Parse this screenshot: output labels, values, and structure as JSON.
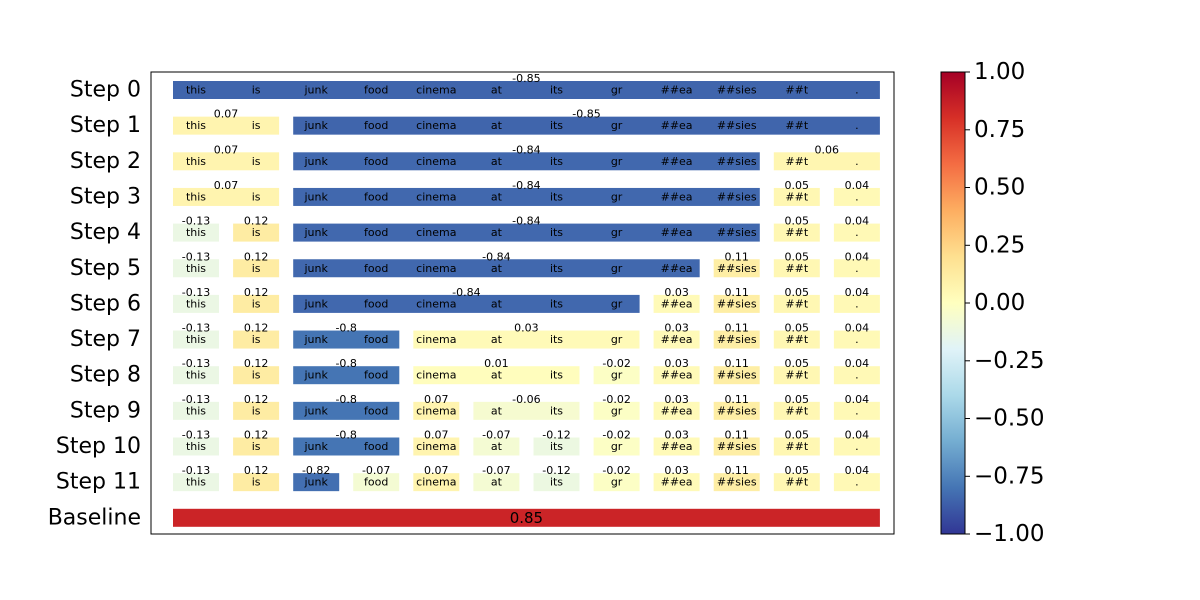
{
  "chart_data": {
    "type": "heatmap",
    "description_free": true,
    "tokens": [
      "this",
      "is",
      "junk",
      "food",
      "cinema",
      "at",
      "its",
      "gr",
      "##ea",
      "##sies",
      "##t",
      "."
    ],
    "rows": [
      {
        "label": "Step 0",
        "segments": [
          {
            "start": 0,
            "end": 11,
            "value": -0.85,
            "text": "-0.85"
          }
        ]
      },
      {
        "label": "Step 1",
        "segments": [
          {
            "start": 0,
            "end": 1,
            "value": 0.07,
            "text": "0.07"
          },
          {
            "start": 2,
            "end": 11,
            "value": -0.85,
            "text": "-0.85"
          }
        ]
      },
      {
        "label": "Step 2",
        "segments": [
          {
            "start": 0,
            "end": 1,
            "value": 0.07,
            "text": "0.07"
          },
          {
            "start": 2,
            "end": 9,
            "value": -0.84,
            "text": "-0.84"
          },
          {
            "start": 10,
            "end": 11,
            "value": 0.06,
            "text": "0.06"
          }
        ]
      },
      {
        "label": "Step 3",
        "segments": [
          {
            "start": 0,
            "end": 1,
            "value": 0.07,
            "text": "0.07"
          },
          {
            "start": 2,
            "end": 9,
            "value": -0.84,
            "text": "-0.84"
          },
          {
            "start": 10,
            "end": 10,
            "value": 0.05,
            "text": "0.05"
          },
          {
            "start": 11,
            "end": 11,
            "value": 0.04,
            "text": "0.04"
          }
        ]
      },
      {
        "label": "Step 4",
        "segments": [
          {
            "start": 0,
            "end": 0,
            "value": -0.13,
            "text": "-0.13"
          },
          {
            "start": 1,
            "end": 1,
            "value": 0.12,
            "text": "0.12"
          },
          {
            "start": 2,
            "end": 9,
            "value": -0.84,
            "text": "-0.84"
          },
          {
            "start": 10,
            "end": 10,
            "value": 0.05,
            "text": "0.05"
          },
          {
            "start": 11,
            "end": 11,
            "value": 0.04,
            "text": "0.04"
          }
        ]
      },
      {
        "label": "Step 5",
        "segments": [
          {
            "start": 0,
            "end": 0,
            "value": -0.13,
            "text": "-0.13"
          },
          {
            "start": 1,
            "end": 1,
            "value": 0.12,
            "text": "0.12"
          },
          {
            "start": 2,
            "end": 8,
            "value": -0.84,
            "text": "-0.84"
          },
          {
            "start": 9,
            "end": 9,
            "value": 0.11,
            "text": "0.11"
          },
          {
            "start": 10,
            "end": 10,
            "value": 0.05,
            "text": "0.05"
          },
          {
            "start": 11,
            "end": 11,
            "value": 0.04,
            "text": "0.04"
          }
        ]
      },
      {
        "label": "Step 6",
        "segments": [
          {
            "start": 0,
            "end": 0,
            "value": -0.13,
            "text": "-0.13"
          },
          {
            "start": 1,
            "end": 1,
            "value": 0.12,
            "text": "0.12"
          },
          {
            "start": 2,
            "end": 7,
            "value": -0.84,
            "text": "-0.84"
          },
          {
            "start": 8,
            "end": 8,
            "value": 0.03,
            "text": "0.03"
          },
          {
            "start": 9,
            "end": 9,
            "value": 0.11,
            "text": "0.11"
          },
          {
            "start": 10,
            "end": 10,
            "value": 0.05,
            "text": "0.05"
          },
          {
            "start": 11,
            "end": 11,
            "value": 0.04,
            "text": "0.04"
          }
        ]
      },
      {
        "label": "Step 7",
        "segments": [
          {
            "start": 0,
            "end": 0,
            "value": -0.13,
            "text": "-0.13"
          },
          {
            "start": 1,
            "end": 1,
            "value": 0.12,
            "text": "0.12"
          },
          {
            "start": 2,
            "end": 3,
            "value": -0.8,
            "text": "-0.8"
          },
          {
            "start": 4,
            "end": 7,
            "value": 0.03,
            "text": "0.03"
          },
          {
            "start": 8,
            "end": 8,
            "value": 0.03,
            "text": "0.03"
          },
          {
            "start": 9,
            "end": 9,
            "value": 0.11,
            "text": "0.11"
          },
          {
            "start": 10,
            "end": 10,
            "value": 0.05,
            "text": "0.05"
          },
          {
            "start": 11,
            "end": 11,
            "value": 0.04,
            "text": "0.04"
          }
        ]
      },
      {
        "label": "Step 8",
        "segments": [
          {
            "start": 0,
            "end": 0,
            "value": -0.13,
            "text": "-0.13"
          },
          {
            "start": 1,
            "end": 1,
            "value": 0.12,
            "text": "0.12"
          },
          {
            "start": 2,
            "end": 3,
            "value": -0.8,
            "text": "-0.8"
          },
          {
            "start": 4,
            "end": 6,
            "value": 0.01,
            "text": "0.01"
          },
          {
            "start": 7,
            "end": 7,
            "value": -0.02,
            "text": "-0.02"
          },
          {
            "start": 8,
            "end": 8,
            "value": 0.03,
            "text": "0.03"
          },
          {
            "start": 9,
            "end": 9,
            "value": 0.11,
            "text": "0.11"
          },
          {
            "start": 10,
            "end": 10,
            "value": 0.05,
            "text": "0.05"
          },
          {
            "start": 11,
            "end": 11,
            "value": 0.04,
            "text": "0.04"
          }
        ]
      },
      {
        "label": "Step 9",
        "segments": [
          {
            "start": 0,
            "end": 0,
            "value": -0.13,
            "text": "-0.13"
          },
          {
            "start": 1,
            "end": 1,
            "value": 0.12,
            "text": "0.12"
          },
          {
            "start": 2,
            "end": 3,
            "value": -0.8,
            "text": "-0.8"
          },
          {
            "start": 4,
            "end": 4,
            "value": 0.07,
            "text": "0.07"
          },
          {
            "start": 5,
            "end": 6,
            "value": -0.06,
            "text": "-0.06"
          },
          {
            "start": 7,
            "end": 7,
            "value": -0.02,
            "text": "-0.02"
          },
          {
            "start": 8,
            "end": 8,
            "value": 0.03,
            "text": "0.03"
          },
          {
            "start": 9,
            "end": 9,
            "value": 0.11,
            "text": "0.11"
          },
          {
            "start": 10,
            "end": 10,
            "value": 0.05,
            "text": "0.05"
          },
          {
            "start": 11,
            "end": 11,
            "value": 0.04,
            "text": "0.04"
          }
        ]
      },
      {
        "label": "Step 10",
        "segments": [
          {
            "start": 0,
            "end": 0,
            "value": -0.13,
            "text": "-0.13"
          },
          {
            "start": 1,
            "end": 1,
            "value": 0.12,
            "text": "0.12"
          },
          {
            "start": 2,
            "end": 3,
            "value": -0.8,
            "text": "-0.8"
          },
          {
            "start": 4,
            "end": 4,
            "value": 0.07,
            "text": "0.07"
          },
          {
            "start": 5,
            "end": 5,
            "value": -0.07,
            "text": "-0.07"
          },
          {
            "start": 6,
            "end": 6,
            "value": -0.12,
            "text": "-0.12"
          },
          {
            "start": 7,
            "end": 7,
            "value": -0.02,
            "text": "-0.02"
          },
          {
            "start": 8,
            "end": 8,
            "value": 0.03,
            "text": "0.03"
          },
          {
            "start": 9,
            "end": 9,
            "value": 0.11,
            "text": "0.11"
          },
          {
            "start": 10,
            "end": 10,
            "value": 0.05,
            "text": "0.05"
          },
          {
            "start": 11,
            "end": 11,
            "value": 0.04,
            "text": "0.04"
          }
        ]
      },
      {
        "label": "Step 11",
        "segments": [
          {
            "start": 0,
            "end": 0,
            "value": -0.13,
            "text": "-0.13"
          },
          {
            "start": 1,
            "end": 1,
            "value": 0.12,
            "text": "0.12"
          },
          {
            "start": 2,
            "end": 2,
            "value": -0.82,
            "text": "-0.82"
          },
          {
            "start": 3,
            "end": 3,
            "value": -0.07,
            "text": "-0.07"
          },
          {
            "start": 4,
            "end": 4,
            "value": 0.07,
            "text": "0.07"
          },
          {
            "start": 5,
            "end": 5,
            "value": -0.07,
            "text": "-0.07"
          },
          {
            "start": 6,
            "end": 6,
            "value": -0.12,
            "text": "-0.12"
          },
          {
            "start": 7,
            "end": 7,
            "value": -0.02,
            "text": "-0.02"
          },
          {
            "start": 8,
            "end": 8,
            "value": 0.03,
            "text": "0.03"
          },
          {
            "start": 9,
            "end": 9,
            "value": 0.11,
            "text": "0.11"
          },
          {
            "start": 10,
            "end": 10,
            "value": 0.05,
            "text": "0.05"
          },
          {
            "start": 11,
            "end": 11,
            "value": 0.04,
            "text": "0.04"
          }
        ]
      }
    ],
    "baseline": {
      "label": "Baseline",
      "value": 0.85,
      "text": "0.85"
    },
    "colorbar": {
      "colormap": "RdYlBu_r",
      "range": [
        -1.0,
        1.0
      ],
      "ticks": [
        "1.00",
        "0.75",
        "0.50",
        "0.25",
        "0.00",
        "−0.25",
        "−0.50",
        "−0.75",
        "−1.00"
      ],
      "tick_values": [
        1.0,
        0.75,
        0.5,
        0.25,
        0.0,
        -0.25,
        -0.5,
        -0.75,
        -1.0
      ]
    },
    "colors": {
      "strong_negative": "#4065ad",
      "strong_positive": "#c92a28",
      "neutral": "#fefec0"
    }
  }
}
